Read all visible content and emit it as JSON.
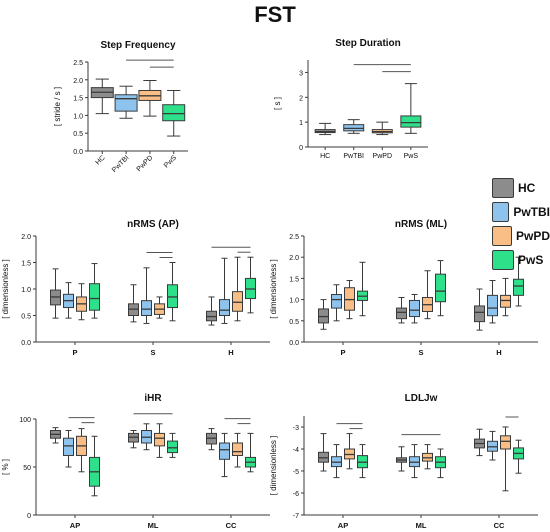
{
  "figure": {
    "title": "FST"
  },
  "colors": {
    "HC": "#8c8c8c",
    "PwTBI": "#8ec3ee",
    "PwPD": "#f8be86",
    "PwS": "#2ee08a",
    "stroke": "#3a3a3a"
  },
  "legend": [
    {
      "label": "HC",
      "color_key": "HC"
    },
    {
      "label": "PwTBI",
      "color_key": "PwTBI"
    },
    {
      "label": "PwPD",
      "color_key": "PwPD"
    },
    {
      "label": "PwS",
      "color_key": "PwS"
    }
  ],
  "chart_data": [
    {
      "id": "step-frequency",
      "type": "boxplot",
      "title": "Step Frequency",
      "ylabel": "[ stride / s ]",
      "ylim": [
        0,
        2.5
      ],
      "yticks": [
        "0.0",
        "0.5",
        "1.0",
        "1.5",
        "2.0",
        "2.5"
      ],
      "categories": [
        "HC",
        "PwTBI",
        "PwPD",
        "PwS"
      ],
      "xtick_rotation": true,
      "boxes": [
        {
          "group": "HC",
          "min": 1.05,
          "q1": 1.5,
          "median": 1.65,
          "q3": 1.78,
          "max": 2.02
        },
        {
          "group": "PwTBI",
          "min": 0.92,
          "q1": 1.12,
          "median": 1.47,
          "q3": 1.58,
          "max": 1.82
        },
        {
          "group": "PwPD",
          "min": 0.98,
          "q1": 1.42,
          "median": 1.55,
          "q3": 1.7,
          "max": 1.98
        },
        {
          "group": "PwS",
          "min": 0.42,
          "q1": 0.85,
          "median": 1.05,
          "q3": 1.3,
          "max": 1.7
        }
      ],
      "brackets": [
        {
          "from": 1,
          "to": 3,
          "level": 0
        },
        {
          "from": 2,
          "to": 3,
          "level": 1
        }
      ]
    },
    {
      "id": "step-duration",
      "type": "boxplot",
      "title": "Step Duration",
      "ylabel": "[ s ]",
      "ylim": [
        0,
        3.5
      ],
      "yticks": [
        "0",
        "1",
        "2",
        "3"
      ],
      "ytick_values": [
        0,
        1,
        2,
        3
      ],
      "categories": [
        "HC",
        "PwTBI",
        "PwPD",
        "PwS"
      ],
      "boxes": [
        {
          "group": "HC",
          "min": 0.5,
          "q1": 0.58,
          "median": 0.62,
          "q3": 0.7,
          "max": 0.95
        },
        {
          "group": "PwTBI",
          "min": 0.55,
          "q1": 0.65,
          "median": 0.75,
          "q3": 0.9,
          "max": 1.1
        },
        {
          "group": "PwPD",
          "min": 0.5,
          "q1": 0.57,
          "median": 0.62,
          "q3": 0.7,
          "max": 1.0
        },
        {
          "group": "PwS",
          "min": 0.55,
          "q1": 0.8,
          "median": 0.98,
          "q3": 1.25,
          "max": 2.55
        }
      ],
      "brackets": [
        {
          "from": 1,
          "to": 3,
          "level": 0
        },
        {
          "from": 2,
          "to": 3,
          "level": 1
        }
      ]
    },
    {
      "id": "nrms-ap",
      "type": "grouped-boxplot",
      "title": "nRMS (AP)",
      "ylabel": "[ dimensionless ]",
      "ylim": [
        0,
        2.0
      ],
      "yticks": [
        "0.0",
        "0.5",
        "1.0",
        "1.5",
        "2.0"
      ],
      "categories": [
        "P",
        "S",
        "H"
      ],
      "boxes": [
        [
          {
            "group": "HC",
            "min": 0.45,
            "q1": 0.7,
            "median": 0.85,
            "q3": 0.98,
            "max": 1.38
          },
          {
            "group": "PwTBI",
            "min": 0.45,
            "q1": 0.65,
            "median": 0.78,
            "q3": 0.9,
            "max": 1.12
          },
          {
            "group": "PwPD",
            "min": 0.42,
            "q1": 0.58,
            "median": 0.72,
            "q3": 0.85,
            "max": 1.1
          },
          {
            "group": "PwS",
            "min": 0.45,
            "q1": 0.6,
            "median": 0.82,
            "q3": 1.1,
            "max": 1.48
          }
        ],
        [
          {
            "group": "HC",
            "min": 0.38,
            "q1": 0.5,
            "median": 0.62,
            "q3": 0.72,
            "max": 1.08
          },
          {
            "group": "PwTBI",
            "min": 0.35,
            "q1": 0.5,
            "median": 0.62,
            "q3": 0.78,
            "max": 1.4
          },
          {
            "group": "PwPD",
            "min": 0.45,
            "q1": 0.52,
            "median": 0.62,
            "q3": 0.72,
            "max": 0.85
          },
          {
            "group": "PwS",
            "min": 0.4,
            "q1": 0.65,
            "median": 0.85,
            "q3": 1.08,
            "max": 1.5
          }
        ],
        [
          {
            "group": "HC",
            "min": 0.32,
            "q1": 0.4,
            "median": 0.48,
            "q3": 0.58,
            "max": 0.85
          },
          {
            "group": "PwTBI",
            "min": 0.35,
            "q1": 0.5,
            "median": 0.6,
            "q3": 0.8,
            "max": 1.58
          },
          {
            "group": "PwPD",
            "min": 0.4,
            "q1": 0.58,
            "median": 0.75,
            "q3": 0.95,
            "max": 1.6
          },
          {
            "group": "PwS",
            "min": 0.55,
            "q1": 0.82,
            "median": 1.0,
            "q3": 1.2,
            "max": 1.6
          }
        ]
      ],
      "brackets": [
        {
          "cat": 1,
          "from": 1,
          "to": 3,
          "level": 0
        },
        {
          "cat": 1,
          "from": 2,
          "to": 3,
          "level": 1
        },
        {
          "cat": 2,
          "from": 0,
          "to": 3,
          "level": 0
        },
        {
          "cat": 2,
          "from": 2,
          "to": 3,
          "level": 1
        }
      ]
    },
    {
      "id": "nrms-ml",
      "type": "grouped-boxplot",
      "title": "nRMS (ML)",
      "ylabel": "[ dimensionless ]",
      "ylim": [
        0,
        2.5
      ],
      "yticks": [
        "0.0",
        "0.5",
        "1.0",
        "1.5",
        "2.0",
        "2.5"
      ],
      "categories": [
        "P",
        "S",
        "H"
      ],
      "boxes": [
        [
          {
            "group": "HC",
            "min": 0.3,
            "q1": 0.45,
            "median": 0.6,
            "q3": 0.78,
            "max": 1.0
          },
          {
            "group": "PwTBI",
            "min": 0.5,
            "q1": 0.8,
            "median": 1.0,
            "q3": 1.12,
            "max": 1.35
          },
          {
            "group": "PwPD",
            "min": 0.55,
            "q1": 0.75,
            "median": 1.0,
            "q3": 1.28,
            "max": 1.45
          },
          {
            "group": "PwS",
            "min": 0.62,
            "q1": 0.98,
            "median": 1.08,
            "q3": 1.2,
            "max": 1.88
          }
        ],
        [
          {
            "group": "HC",
            "min": 0.45,
            "q1": 0.55,
            "median": 0.7,
            "q3": 0.8,
            "max": 1.05
          },
          {
            "group": "PwTBI",
            "min": 0.45,
            "q1": 0.6,
            "median": 0.75,
            "q3": 0.98,
            "max": 1.12
          },
          {
            "group": "PwPD",
            "min": 0.55,
            "q1": 0.72,
            "median": 0.88,
            "q3": 1.05,
            "max": 1.68
          },
          {
            "group": "PwS",
            "min": 0.62,
            "q1": 0.95,
            "median": 1.2,
            "q3": 1.6,
            "max": 1.92
          }
        ],
        [
          {
            "group": "HC",
            "min": 0.28,
            "q1": 0.48,
            "median": 0.7,
            "q3": 0.85,
            "max": 1.25
          },
          {
            "group": "PwTBI",
            "min": 0.45,
            "q1": 0.62,
            "median": 0.8,
            "q3": 1.1,
            "max": 1.45
          },
          {
            "group": "PwPD",
            "min": 0.62,
            "q1": 0.82,
            "median": 0.98,
            "q3": 1.1,
            "max": 1.5
          },
          {
            "group": "PwS",
            "min": 0.85,
            "q1": 1.1,
            "median": 1.32,
            "q3": 1.48,
            "max": 2.0
          }
        ]
      ],
      "brackets": []
    },
    {
      "id": "ihr",
      "type": "grouped-boxplot",
      "title": "iHR",
      "ylabel": "[ % ]",
      "ylim": [
        0,
        100
      ],
      "yticks": [
        "0",
        "50",
        "100"
      ],
      "ytick_values": [
        0,
        50,
        100
      ],
      "categories": [
        "AP",
        "ML",
        "CC"
      ],
      "boxes": [
        [
          {
            "group": "HC",
            "min": 75,
            "q1": 80,
            "median": 84,
            "q3": 88,
            "max": 91
          },
          {
            "group": "PwTBI",
            "min": 50,
            "q1": 62,
            "median": 72,
            "q3": 80,
            "max": 88
          },
          {
            "group": "PwPD",
            "min": 45,
            "q1": 62,
            "median": 72,
            "q3": 82,
            "max": 90
          },
          {
            "group": "PwS",
            "min": 20,
            "q1": 30,
            "median": 45,
            "q3": 60,
            "max": 82
          }
        ],
        [
          {
            "group": "HC",
            "min": 70,
            "q1": 76,
            "median": 81,
            "q3": 85,
            "max": 88
          },
          {
            "group": "PwTBI",
            "min": 68,
            "q1": 75,
            "median": 81,
            "q3": 88,
            "max": 95
          },
          {
            "group": "PwPD",
            "min": 60,
            "q1": 72,
            "median": 80,
            "q3": 85,
            "max": 95
          },
          {
            "group": "PwS",
            "min": 60,
            "q1": 65,
            "median": 70,
            "q3": 77,
            "max": 85
          }
        ],
        [
          {
            "group": "HC",
            "min": 68,
            "q1": 74,
            "median": 80,
            "q3": 85,
            "max": 90
          },
          {
            "group": "PwTBI",
            "min": 40,
            "q1": 58,
            "median": 68,
            "q3": 75,
            "max": 85
          },
          {
            "group": "PwPD",
            "min": 50,
            "q1": 62,
            "median": 66,
            "q3": 75,
            "max": 85
          },
          {
            "group": "PwS",
            "min": 45,
            "q1": 50,
            "median": 55,
            "q3": 60,
            "max": 85
          }
        ]
      ],
      "brackets": [
        {
          "cat": 0,
          "from": 1,
          "to": 3,
          "level": 0
        },
        {
          "cat": 0,
          "from": 2,
          "to": 3,
          "level": 1
        },
        {
          "cat": 1,
          "from": 0,
          "to": 3,
          "level": 0
        },
        {
          "cat": 2,
          "from": 1,
          "to": 3,
          "level": 0
        },
        {
          "cat": 2,
          "from": 2,
          "to": 3,
          "level": 1
        }
      ]
    },
    {
      "id": "ldljw",
      "type": "grouped-boxplot",
      "title": "LDLJw",
      "ylabel": "[ dimensionless ]",
      "ylim": [
        -7,
        -2.5
      ],
      "yticks": [
        "-3",
        "-4",
        "-5",
        "-6",
        "-7"
      ],
      "ytick_values": [
        -3,
        -4,
        -5,
        -6,
        -7
      ],
      "categories": [
        "AP",
        "ML",
        "CC"
      ],
      "boxes": [
        [
          {
            "group": "HC",
            "min": -5.0,
            "q1": -4.6,
            "median": -4.4,
            "q3": -4.15,
            "max": -3.3
          },
          {
            "group": "PwTBI",
            "min": -5.3,
            "q1": -4.8,
            "median": -4.6,
            "q3": -4.35,
            "max": -3.8
          },
          {
            "group": "PwPD",
            "min": -4.9,
            "q1": -4.45,
            "median": -4.25,
            "q3": -4.0,
            "max": -3.3
          },
          {
            "group": "PwS",
            "min": -5.3,
            "q1": -4.85,
            "median": -4.6,
            "q3": -4.3,
            "max": -3.8
          }
        ],
        [
          {
            "group": "HC",
            "min": -5.0,
            "q1": -4.6,
            "median": -4.5,
            "q3": -4.4,
            "max": -3.9
          },
          {
            "group": "PwTBI",
            "min": -5.3,
            "q1": -4.8,
            "median": -4.6,
            "q3": -4.35,
            "max": -3.8
          },
          {
            "group": "PwPD",
            "min": -4.9,
            "q1": -4.55,
            "median": -4.4,
            "q3": -4.2,
            "max": -3.8
          },
          {
            "group": "PwS",
            "min": -5.3,
            "q1": -4.85,
            "median": -4.6,
            "q3": -4.35,
            "max": -4.0
          }
        ],
        [
          {
            "group": "HC",
            "min": -4.3,
            "q1": -3.95,
            "median": -3.75,
            "q3": -3.55,
            "max": -3.1
          },
          {
            "group": "PwTBI",
            "min": -4.5,
            "q1": -4.1,
            "median": -3.9,
            "q3": -3.65,
            "max": -3.2
          },
          {
            "group": "PwPD",
            "min": -5.9,
            "q1": -4.0,
            "median": -3.65,
            "q3": -3.4,
            "max": -3.0
          },
          {
            "group": "PwS",
            "min": -5.1,
            "q1": -4.45,
            "median": -4.2,
            "q3": -3.95,
            "max": -3.6
          }
        ]
      ],
      "brackets": [
        {
          "cat": 0,
          "from": 1,
          "to": 3,
          "level": 0
        },
        {
          "cat": 0,
          "from": 2,
          "to": 3,
          "level": 1
        },
        {
          "cat": 1,
          "from": 0,
          "to": 3,
          "level": 0
        },
        {
          "cat": 2,
          "from": 2,
          "to": 3,
          "level": 0
        }
      ]
    }
  ]
}
